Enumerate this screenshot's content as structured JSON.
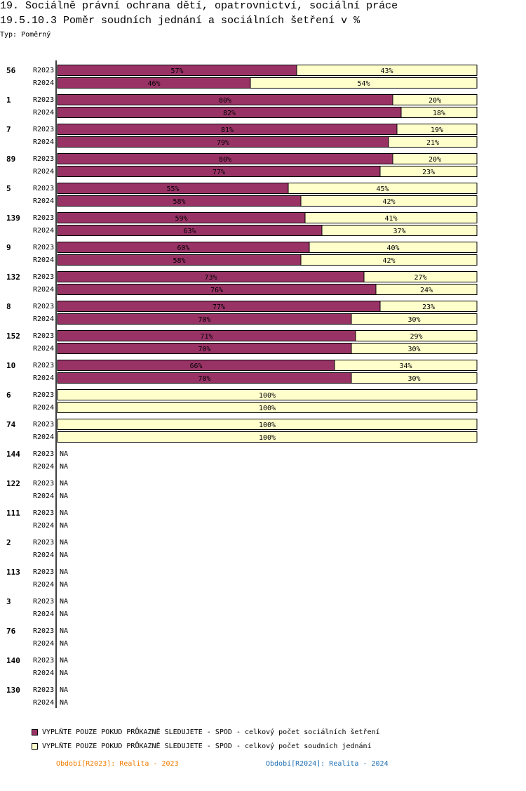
{
  "header": {
    "title": "19. Sociálně právní ochrana dětí, opatrovnictví, sociální práce",
    "subtitle": "19.5.10.3 Poměr soudních jednání a sociálních šetření v %",
    "typ": "Typ: Poměrný"
  },
  "colors": {
    "series1": "#993366",
    "series2": "#ffffcc"
  },
  "chart_data": {
    "type": "bar",
    "orientation": "horizontal",
    "stacked": "percent",
    "xlim": [
      0,
      100
    ],
    "na_label": "NA",
    "series": [
      {
        "name": "VYPLŇTE POUZE POKUD PRŮKAZNĚ SLEDUJETE - SPOD - celkový počet sociálních šetření",
        "color": "#993366"
      },
      {
        "name": "VYPLŇTE POUZE POKUD PRŮKAZNĚ SLEDUJETE - SPOD - celkový počet soudních jednání",
        "color": "#ffffcc"
      }
    ],
    "groups": [
      {
        "label": "56",
        "rows": [
          {
            "period": "R2023",
            "values": [
              57,
              43
            ]
          },
          {
            "period": "R2024",
            "values": [
              46,
              54
            ]
          }
        ]
      },
      {
        "label": "1",
        "rows": [
          {
            "period": "R2023",
            "values": [
              80,
              20
            ]
          },
          {
            "period": "R2024",
            "values": [
              82,
              18
            ]
          }
        ]
      },
      {
        "label": "7",
        "rows": [
          {
            "period": "R2023",
            "values": [
              81,
              19
            ]
          },
          {
            "period": "R2024",
            "values": [
              79,
              21
            ]
          }
        ]
      },
      {
        "label": "89",
        "rows": [
          {
            "period": "R2023",
            "values": [
              80,
              20
            ]
          },
          {
            "period": "R2024",
            "values": [
              77,
              23
            ]
          }
        ]
      },
      {
        "label": "5",
        "rows": [
          {
            "period": "R2023",
            "values": [
              55,
              45
            ]
          },
          {
            "period": "R2024",
            "values": [
              58,
              42
            ]
          }
        ]
      },
      {
        "label": "139",
        "rows": [
          {
            "period": "R2023",
            "values": [
              59,
              41
            ]
          },
          {
            "period": "R2024",
            "values": [
              63,
              37
            ]
          }
        ]
      },
      {
        "label": "9",
        "rows": [
          {
            "period": "R2023",
            "values": [
              60,
              40
            ]
          },
          {
            "period": "R2024",
            "values": [
              58,
              42
            ]
          }
        ]
      },
      {
        "label": "132",
        "rows": [
          {
            "period": "R2023",
            "values": [
              73,
              27
            ]
          },
          {
            "period": "R2024",
            "values": [
              76,
              24
            ]
          }
        ]
      },
      {
        "label": "8",
        "rows": [
          {
            "period": "R2023",
            "values": [
              77,
              23
            ]
          },
          {
            "period": "R2024",
            "values": [
              70,
              30
            ]
          }
        ]
      },
      {
        "label": "152",
        "rows": [
          {
            "period": "R2023",
            "values": [
              71,
              29
            ]
          },
          {
            "period": "R2024",
            "values": [
              70,
              30
            ]
          }
        ]
      },
      {
        "label": "10",
        "rows": [
          {
            "period": "R2023",
            "values": [
              66,
              34
            ]
          },
          {
            "period": "R2024",
            "values": [
              70,
              30
            ]
          }
        ]
      },
      {
        "label": "6",
        "rows": [
          {
            "period": "R2023",
            "values": [
              0,
              100
            ]
          },
          {
            "period": "R2024",
            "values": [
              0,
              100
            ]
          }
        ]
      },
      {
        "label": "74",
        "rows": [
          {
            "period": "R2023",
            "values": [
              0,
              100
            ]
          },
          {
            "period": "R2024",
            "values": [
              0,
              100
            ]
          }
        ]
      },
      {
        "label": "144",
        "rows": [
          {
            "period": "R2023",
            "values": null
          },
          {
            "period": "R2024",
            "values": null
          }
        ]
      },
      {
        "label": "122",
        "rows": [
          {
            "period": "R2023",
            "values": null
          },
          {
            "period": "R2024",
            "values": null
          }
        ]
      },
      {
        "label": "111",
        "rows": [
          {
            "period": "R2023",
            "values": null
          },
          {
            "period": "R2024",
            "values": null
          }
        ]
      },
      {
        "label": "2",
        "rows": [
          {
            "period": "R2023",
            "values": null
          },
          {
            "period": "R2024",
            "values": null
          }
        ]
      },
      {
        "label": "113",
        "rows": [
          {
            "period": "R2023",
            "values": null
          },
          {
            "period": "R2024",
            "values": null
          }
        ]
      },
      {
        "label": "3",
        "rows": [
          {
            "period": "R2023",
            "values": null
          },
          {
            "period": "R2024",
            "values": null
          }
        ]
      },
      {
        "label": "76",
        "rows": [
          {
            "period": "R2023",
            "values": null
          },
          {
            "period": "R2024",
            "values": null
          }
        ]
      },
      {
        "label": "140",
        "rows": [
          {
            "period": "R2023",
            "values": null
          },
          {
            "period": "R2024",
            "values": null
          }
        ]
      },
      {
        "label": "130",
        "rows": [
          {
            "period": "R2023",
            "values": null
          },
          {
            "period": "R2024",
            "values": null
          }
        ]
      }
    ]
  },
  "footer": {
    "period1": "Období[R2023]: Realita - 2023",
    "period2": "Období[R2024]: Realita - 2024"
  }
}
